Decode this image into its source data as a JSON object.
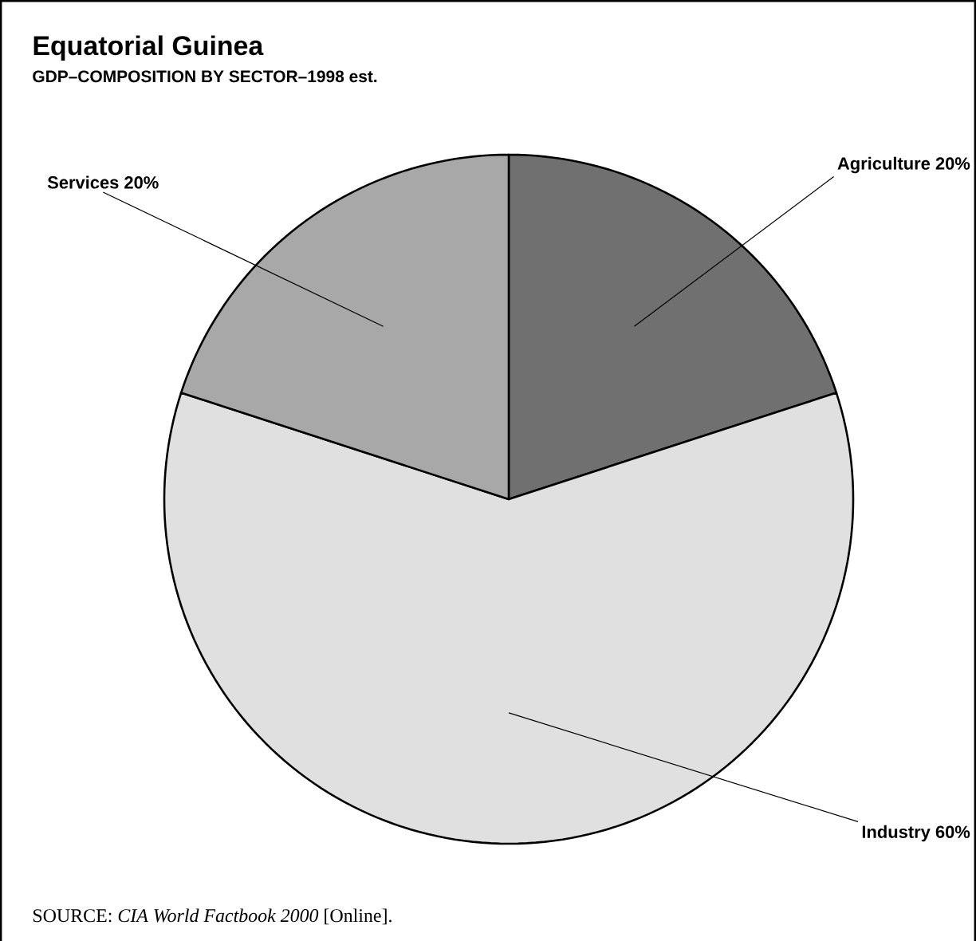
{
  "chart_data": {
    "type": "pie",
    "title": "Equatorial Guinea",
    "subtitle": "GDP–COMPOSITION BY SECTOR–1998 est.",
    "categories": [
      "Agriculture 20%",
      "Industry 60%",
      "Services 20%"
    ],
    "values": [
      20,
      60,
      20
    ],
    "colors": [
      "#707070",
      "#e0e0e0",
      "#a8a8a8"
    ],
    "annotations": [
      "SOURCE: *CIA World Factbook 2000* [Online]."
    ]
  }
}
